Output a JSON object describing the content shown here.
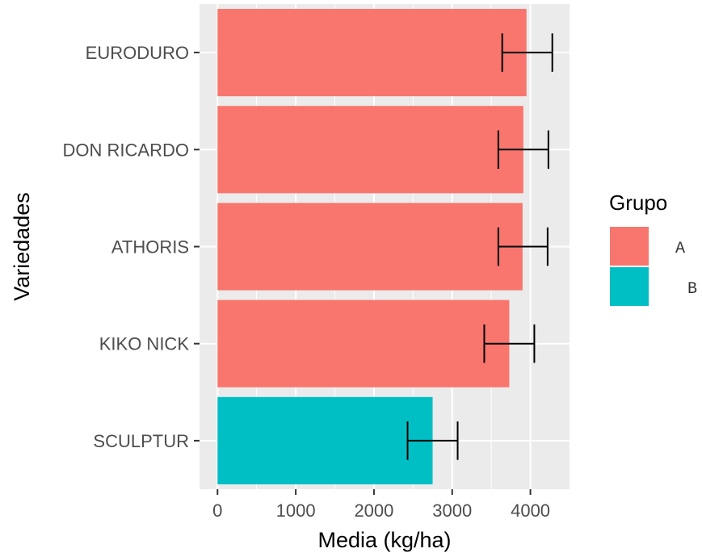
{
  "chart_data": {
    "type": "bar",
    "orientation": "horizontal",
    "categories": [
      "EURODURO",
      "DON RICARDO",
      "ATHORIS",
      "KIKO NICK",
      "SCULPTUR"
    ],
    "values": [
      3950,
      3910,
      3900,
      3730,
      2750
    ],
    "error_low": [
      3640,
      3590,
      3590,
      3410,
      2430
    ],
    "error_high": [
      4280,
      4230,
      4220,
      4050,
      3070
    ],
    "groups": [
      "A",
      "A",
      "A",
      "A",
      "B"
    ],
    "xlabel": "Media (kg/ha)",
    "ylabel": "Variedades",
    "xlim": [
      -230,
      4500
    ],
    "xticks": [
      0,
      1000,
      2000,
      3000,
      4000
    ],
    "grid": true,
    "legend": {
      "title": "Grupo",
      "position": "right",
      "entries": [
        {
          "label": "A",
          "color": "#F8766D"
        },
        {
          "label": "B",
          "color": "#00BFC4"
        }
      ]
    },
    "colors": {
      "panel": "#EBEBEB",
      "grid": "#FFFFFF",
      "A": "#F8766D",
      "B": "#00BFC4"
    }
  }
}
